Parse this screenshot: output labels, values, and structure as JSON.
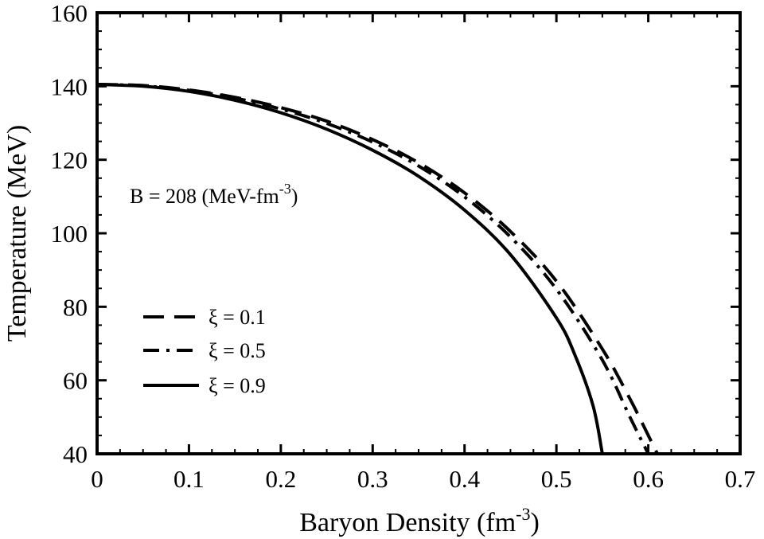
{
  "chart_data": {
    "type": "line",
    "xlabel": "Baryon Density (fm",
    "xlabel_sup": "-3",
    "xlabel_end": ")",
    "ylabel": "Temperature (MeV)",
    "xlim": [
      0,
      0.7
    ],
    "ylim": [
      40,
      160
    ],
    "xticks": [
      "0",
      "0.1",
      "0.2",
      "0.3",
      "0.4",
      "0.5",
      "0.6",
      "0.7"
    ],
    "yticks": [
      "40",
      "60",
      "80",
      "100",
      "120",
      "140",
      "160"
    ],
    "grid": false,
    "legend_placement": "bottom-left",
    "annotation": {
      "text": "B = 208 (MeV-fm",
      "sup": "-3",
      "end": ")"
    },
    "series": [
      {
        "name": "ξ = 0.1",
        "style": "dashed",
        "x": [
          0,
          0.05,
          0.1,
          0.15,
          0.2,
          0.25,
          0.3,
          0.35,
          0.4,
          0.45,
          0.5,
          0.55,
          0.58,
          0.6,
          0.61
        ],
        "y": [
          140.5,
          140.2,
          139.0,
          137.0,
          134.2,
          130.5,
          125.5,
          119.2,
          111.0,
          100.5,
          87.0,
          68.5,
          55.0,
          45.0,
          40.0
        ]
      },
      {
        "name": "ξ = 0.5",
        "style": "dash-dot",
        "x": [
          0,
          0.05,
          0.1,
          0.15,
          0.2,
          0.25,
          0.3,
          0.35,
          0.4,
          0.45,
          0.5,
          0.55,
          0.58,
          0.6
        ],
        "y": [
          140.5,
          140.1,
          138.9,
          136.8,
          133.8,
          129.9,
          124.8,
          118.3,
          109.9,
          99.0,
          84.8,
          65.5,
          50.0,
          40.0
        ]
      },
      {
        "name": "ξ = 0.9",
        "style": "solid",
        "x": [
          0,
          0.05,
          0.1,
          0.15,
          0.2,
          0.25,
          0.3,
          0.35,
          0.4,
          0.45,
          0.5,
          0.52,
          0.54,
          0.55
        ],
        "y": [
          140.5,
          140.0,
          138.6,
          136.2,
          132.8,
          128.3,
          122.6,
          115.5,
          106.3,
          94.2,
          77.0,
          67.0,
          53.0,
          40.0
        ]
      }
    ]
  }
}
